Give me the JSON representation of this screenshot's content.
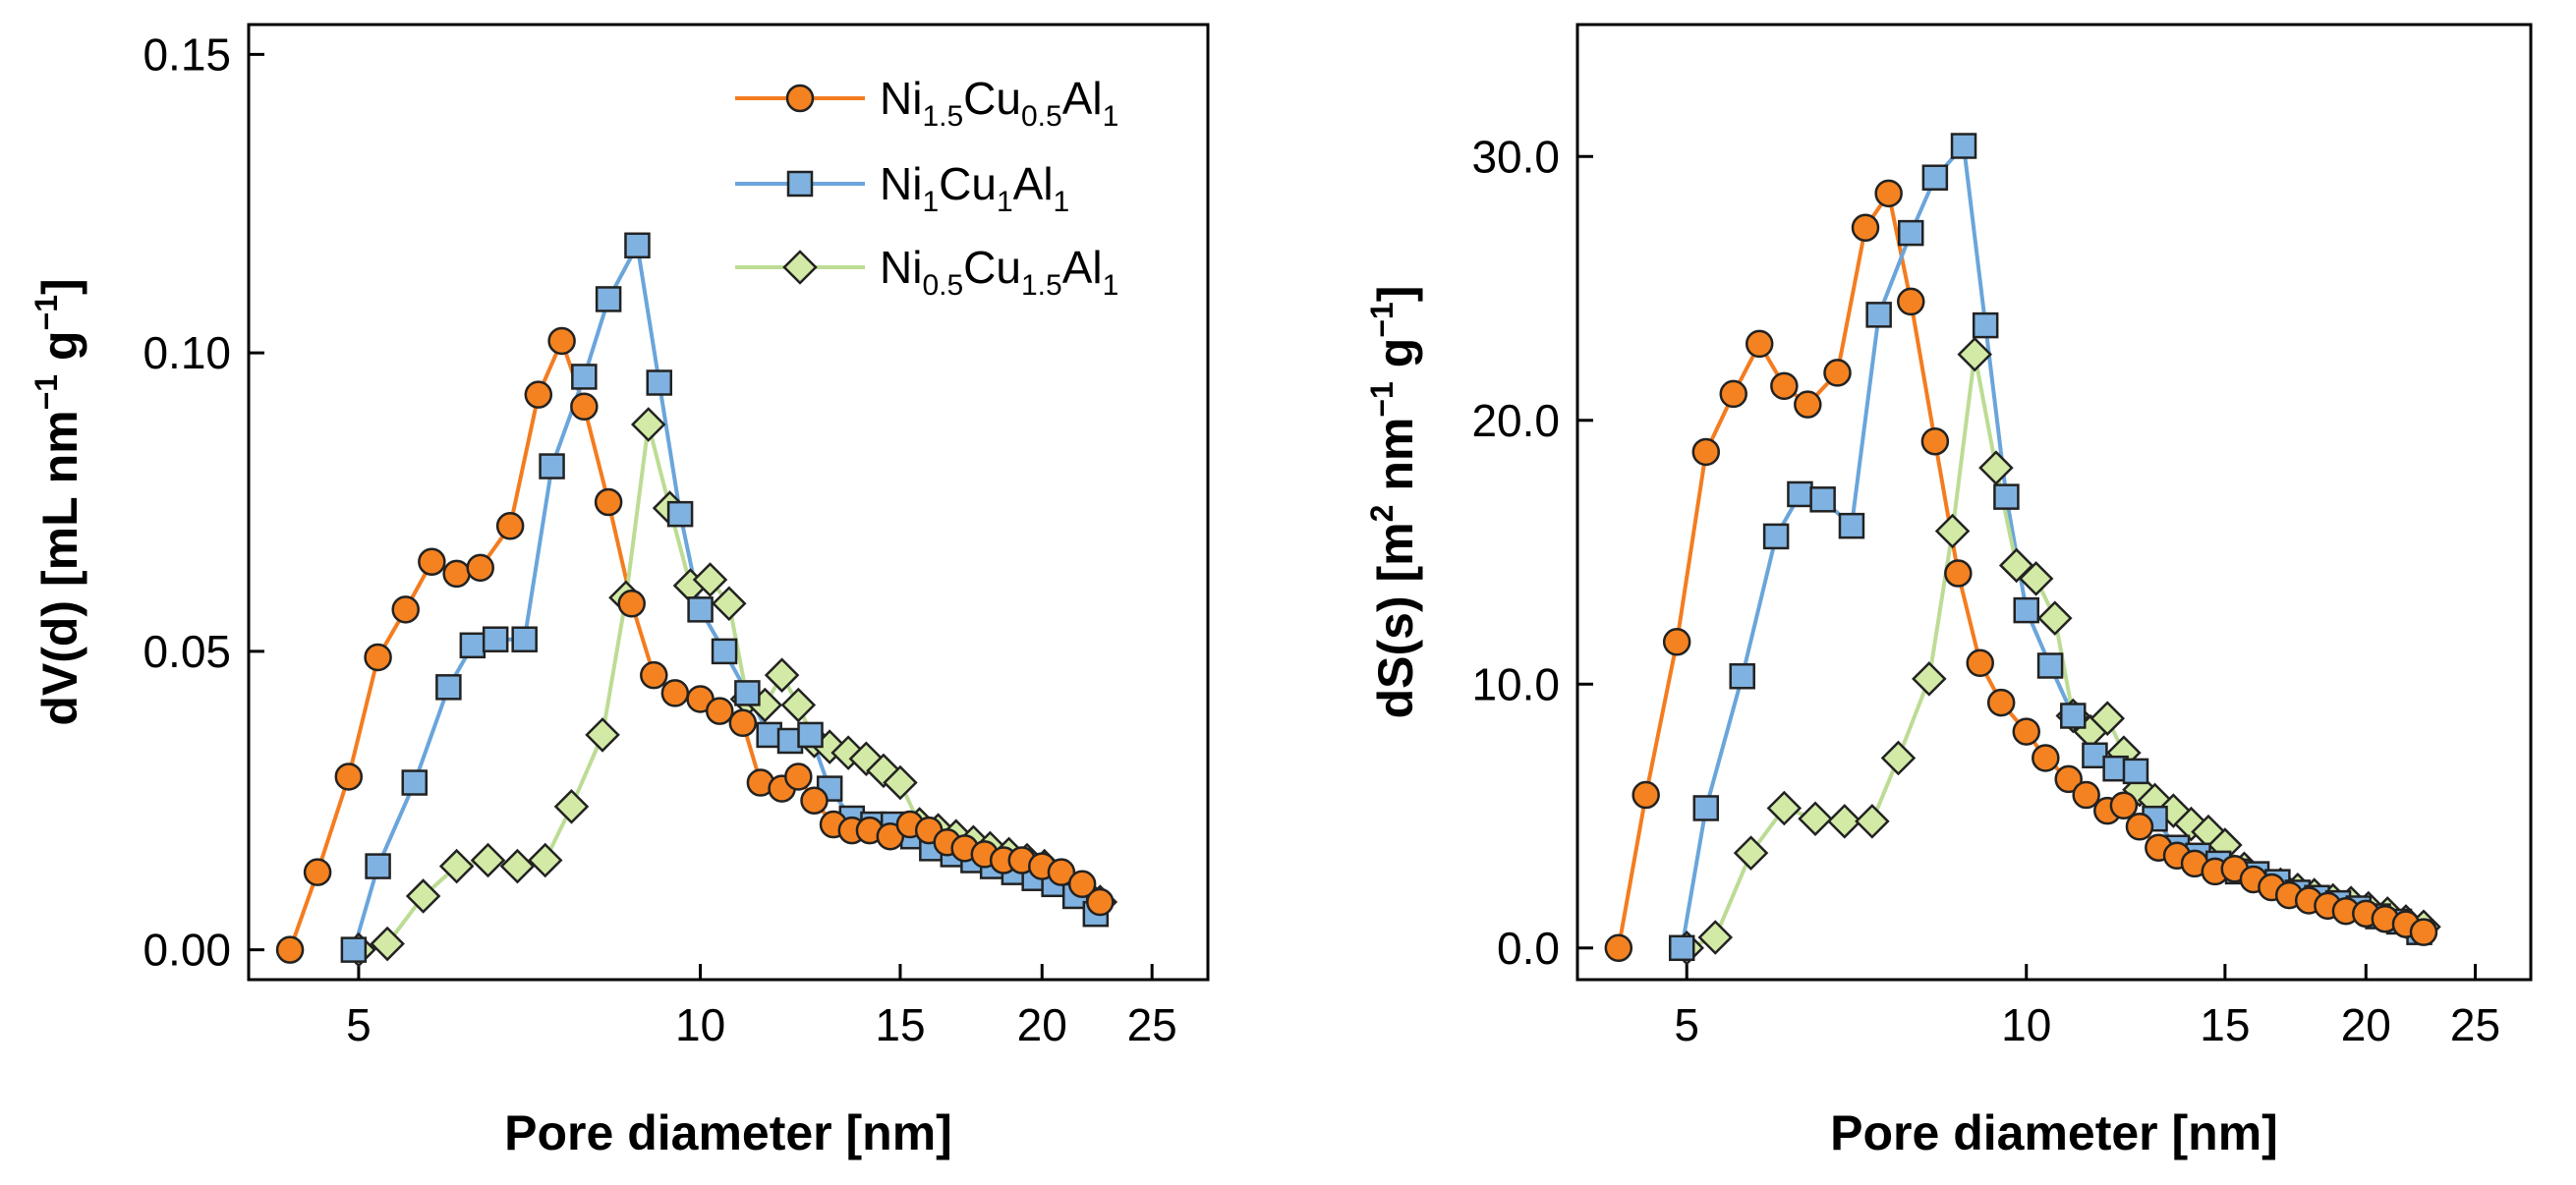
{
  "chart_data": [
    {
      "type": "line",
      "panel": "left",
      "ylabel": {
        "main": "dV(d) [mL nm",
        "sup1": "−1",
        "mid": " g",
        "sup2": "−1",
        "end": "]"
      },
      "xlabel": "Pore diameter [nm]",
      "xscale": "log",
      "xlim": [
        4.0,
        28.0
      ],
      "ylim": [
        -0.005,
        0.155
      ],
      "xticks": [
        5,
        10,
        15,
        20,
        25
      ],
      "xtick_labels": [
        "5",
        "10",
        "15",
        "20",
        "25"
      ],
      "yticks": [
        0.0,
        0.05,
        0.1,
        0.15
      ],
      "ytick_labels": [
        "0.00",
        "0.05",
        "0.10",
        "0.15"
      ],
      "series": [
        {
          "name": "Ni1.5Cu0.5Al1",
          "color": "#f58220",
          "fill": "#f58220",
          "line": "#f47c1f",
          "marker": "circle",
          "points": [
            [
              4.35,
              0.0
            ],
            [
              4.6,
              0.013
            ],
            [
              4.9,
              0.029
            ],
            [
              5.2,
              0.049
            ],
            [
              5.5,
              0.057
            ],
            [
              5.8,
              0.065
            ],
            [
              6.1,
              0.063
            ],
            [
              6.4,
              0.064
            ],
            [
              6.8,
              0.071
            ],
            [
              7.2,
              0.093
            ],
            [
              7.55,
              0.102
            ],
            [
              7.9,
              0.091
            ],
            [
              8.3,
              0.075
            ],
            [
              8.7,
              0.058
            ],
            [
              9.1,
              0.046
            ],
            [
              9.5,
              0.043
            ],
            [
              10.0,
              0.042
            ],
            [
              10.4,
              0.04
            ],
            [
              10.9,
              0.038
            ],
            [
              11.3,
              0.028
            ],
            [
              11.8,
              0.027
            ],
            [
              12.2,
              0.029
            ],
            [
              12.6,
              0.025
            ],
            [
              13.1,
              0.021
            ],
            [
              13.6,
              0.02
            ],
            [
              14.1,
              0.02
            ],
            [
              14.7,
              0.019
            ],
            [
              15.3,
              0.021
            ],
            [
              15.9,
              0.02
            ],
            [
              16.5,
              0.018
            ],
            [
              17.1,
              0.017
            ],
            [
              17.8,
              0.016
            ],
            [
              18.5,
              0.015
            ],
            [
              19.2,
              0.015
            ],
            [
              20.0,
              0.014
            ],
            [
              20.8,
              0.013
            ],
            [
              21.7,
              0.011
            ],
            [
              22.5,
              0.008
            ]
          ]
        },
        {
          "name": "Ni1Cu1Al1",
          "color": "#5b9bd5",
          "fill": "#7fb2e0",
          "line": "#6aa5db",
          "marker": "square",
          "points": [
            [
              4.95,
              0.0
            ],
            [
              5.2,
              0.014
            ],
            [
              5.6,
              0.028
            ],
            [
              6.0,
              0.044
            ],
            [
              6.3,
              0.051
            ],
            [
              6.6,
              0.052
            ],
            [
              7.0,
              0.052
            ],
            [
              7.4,
              0.081
            ],
            [
              7.9,
              0.096
            ],
            [
              8.3,
              0.109
            ],
            [
              8.8,
              0.118
            ],
            [
              9.2,
              0.095
            ],
            [
              9.6,
              0.073
            ],
            [
              10.0,
              0.057
            ],
            [
              10.5,
              0.05
            ],
            [
              11.0,
              0.043
            ],
            [
              11.5,
              0.036
            ],
            [
              12.0,
              0.035
            ],
            [
              12.5,
              0.036
            ],
            [
              13.0,
              0.027
            ],
            [
              13.6,
              0.022
            ],
            [
              14.2,
              0.021
            ],
            [
              14.8,
              0.021
            ],
            [
              15.4,
              0.019
            ],
            [
              16.0,
              0.017
            ],
            [
              16.7,
              0.016
            ],
            [
              17.4,
              0.015
            ],
            [
              18.1,
              0.014
            ],
            [
              18.9,
              0.013
            ],
            [
              19.7,
              0.012
            ],
            [
              20.5,
              0.011
            ],
            [
              21.4,
              0.009
            ],
            [
              22.3,
              0.006
            ]
          ]
        },
        {
          "name": "Ni0.5Cu1.5Al1",
          "color": "#b9dc8a",
          "fill": "#d2eaa5",
          "line": "#bcdc94",
          "marker": "diamond",
          "points": [
            [
              5.0,
              0.0
            ],
            [
              5.3,
              0.001
            ],
            [
              5.7,
              0.009
            ],
            [
              6.1,
              0.014
            ],
            [
              6.5,
              0.015
            ],
            [
              6.9,
              0.014
            ],
            [
              7.3,
              0.015
            ],
            [
              7.7,
              0.024
            ],
            [
              8.2,
              0.036
            ],
            [
              8.6,
              0.059
            ],
            [
              9.0,
              0.088
            ],
            [
              9.4,
              0.074
            ],
            [
              9.8,
              0.061
            ],
            [
              10.2,
              0.062
            ],
            [
              10.6,
              0.058
            ],
            [
              11.0,
              0.042
            ],
            [
              11.4,
              0.041
            ],
            [
              11.8,
              0.046
            ],
            [
              12.2,
              0.041
            ],
            [
              12.6,
              0.035
            ],
            [
              13.0,
              0.034
            ],
            [
              13.5,
              0.033
            ],
            [
              14.0,
              0.032
            ],
            [
              14.5,
              0.03
            ],
            [
              15.0,
              0.028
            ],
            [
              15.6,
              0.021
            ],
            [
              16.2,
              0.02
            ],
            [
              16.8,
              0.019
            ],
            [
              17.4,
              0.018
            ],
            [
              18.0,
              0.017
            ],
            [
              18.7,
              0.016
            ],
            [
              19.4,
              0.015
            ],
            [
              20.1,
              0.014
            ],
            [
              20.9,
              0.012
            ],
            [
              21.7,
              0.01
            ],
            [
              22.5,
              0.008
            ]
          ]
        }
      ],
      "legend": {
        "placement": "top-right",
        "entries": [
          {
            "base1": "Ni",
            "sub1": "1.5",
            "base2": "Cu",
            "sub2": "0.5",
            "base3": "Al",
            "sub3": "1"
          },
          {
            "base1": "Ni",
            "sub1": "1",
            "base2": "Cu",
            "sub2": "1",
            "base3": "Al",
            "sub3": "1"
          },
          {
            "base1": "Ni",
            "sub1": "0.5",
            "base2": "Cu",
            "sub2": "1.5",
            "base3": "Al",
            "sub3": "1"
          }
        ]
      }
    },
    {
      "type": "line",
      "panel": "right",
      "ylabel": {
        "main": "dS(s) [m",
        "sup0": "2",
        "mid0": " nm",
        "sup1": "−1",
        "mid": " g",
        "sup2": "−1",
        "end": "]"
      },
      "xlabel": "Pore diameter [nm]",
      "xscale": "log",
      "xlim": [
        4.0,
        28.0
      ],
      "ylim": [
        -1.2,
        35.0
      ],
      "xticks": [
        5,
        10,
        15,
        20,
        25
      ],
      "xtick_labels": [
        "5",
        "10",
        "15",
        "20",
        "25"
      ],
      "yticks": [
        0,
        10,
        20,
        30
      ],
      "ytick_labels": [
        "0.0",
        "10.0",
        "20.0",
        "30.0"
      ],
      "series": [
        {
          "name": "Ni1.5Cu0.5Al1",
          "color": "#f58220",
          "fill": "#f58220",
          "line": "#f47c1f",
          "marker": "circle",
          "points": [
            [
              4.35,
              0.0
            ],
            [
              4.6,
              5.8
            ],
            [
              4.9,
              11.6
            ],
            [
              5.2,
              18.8
            ],
            [
              5.5,
              21.0
            ],
            [
              5.8,
              22.9
            ],
            [
              6.1,
              21.3
            ],
            [
              6.4,
              20.6
            ],
            [
              6.8,
              21.8
            ],
            [
              7.2,
              27.3
            ],
            [
              7.55,
              28.6
            ],
            [
              7.9,
              24.5
            ],
            [
              8.3,
              19.2
            ],
            [
              8.7,
              14.2
            ],
            [
              9.1,
              10.8
            ],
            [
              9.5,
              9.3
            ],
            [
              10.0,
              8.2
            ],
            [
              10.4,
              7.2
            ],
            [
              10.9,
              6.4
            ],
            [
              11.3,
              5.8
            ],
            [
              11.8,
              5.2
            ],
            [
              12.2,
              5.4
            ],
            [
              12.6,
              4.6
            ],
            [
              13.1,
              3.8
            ],
            [
              13.6,
              3.5
            ],
            [
              14.1,
              3.2
            ],
            [
              14.7,
              2.9
            ],
            [
              15.3,
              3.0
            ],
            [
              15.9,
              2.6
            ],
            [
              16.5,
              2.3
            ],
            [
              17.1,
              2.0
            ],
            [
              17.8,
              1.8
            ],
            [
              18.5,
              1.6
            ],
            [
              19.2,
              1.4
            ],
            [
              20.0,
              1.3
            ],
            [
              20.8,
              1.1
            ],
            [
              21.7,
              0.9
            ],
            [
              22.5,
              0.6
            ]
          ]
        },
        {
          "name": "Ni1Cu1Al1",
          "color": "#5b9bd5",
          "fill": "#7fb2e0",
          "line": "#6aa5db",
          "marker": "square",
          "points": [
            [
              4.95,
              0.0
            ],
            [
              5.2,
              5.3
            ],
            [
              5.6,
              10.3
            ],
            [
              6.0,
              15.6
            ],
            [
              6.3,
              17.2
            ],
            [
              6.6,
              17.0
            ],
            [
              7.0,
              16.0
            ],
            [
              7.4,
              24.0
            ],
            [
              7.9,
              27.1
            ],
            [
              8.3,
              29.2
            ],
            [
              8.8,
              30.4
            ],
            [
              9.2,
              23.6
            ],
            [
              9.6,
              17.1
            ],
            [
              10.0,
              12.8
            ],
            [
              10.5,
              10.7
            ],
            [
              11.0,
              8.8
            ],
            [
              11.5,
              7.3
            ],
            [
              12.0,
              6.8
            ],
            [
              12.5,
              6.7
            ],
            [
              13.0,
              4.9
            ],
            [
              13.6,
              3.8
            ],
            [
              14.2,
              3.5
            ],
            [
              14.8,
              3.2
            ],
            [
              15.4,
              2.9
            ],
            [
              16.0,
              2.8
            ],
            [
              16.7,
              2.5
            ],
            [
              17.4,
              2.1
            ],
            [
              18.1,
              1.9
            ],
            [
              18.9,
              1.7
            ],
            [
              19.7,
              1.5
            ],
            [
              20.5,
              1.2
            ],
            [
              21.4,
              1.0
            ],
            [
              22.3,
              0.6
            ]
          ]
        },
        {
          "name": "Ni0.5Cu1.5Al1",
          "color": "#b9dc8a",
          "fill": "#d2eaa5",
          "line": "#bcdc94",
          "marker": "diamond",
          "points": [
            [
              5.0,
              0.0
            ],
            [
              5.3,
              0.4
            ],
            [
              5.7,
              3.6
            ],
            [
              6.1,
              5.3
            ],
            [
              6.5,
              4.9
            ],
            [
              6.9,
              4.8
            ],
            [
              7.3,
              4.8
            ],
            [
              7.7,
              7.2
            ],
            [
              8.2,
              10.2
            ],
            [
              8.6,
              15.8
            ],
            [
              9.0,
              22.5
            ],
            [
              9.4,
              18.2
            ],
            [
              9.8,
              14.5
            ],
            [
              10.2,
              14.0
            ],
            [
              10.6,
              12.5
            ],
            [
              11.0,
              8.8
            ],
            [
              11.4,
              8.2
            ],
            [
              11.8,
              8.7
            ],
            [
              12.2,
              7.4
            ],
            [
              12.6,
              6.0
            ],
            [
              13.0,
              5.6
            ],
            [
              13.5,
              5.2
            ],
            [
              14.0,
              4.7
            ],
            [
              14.5,
              4.4
            ],
            [
              15.0,
              3.9
            ],
            [
              15.6,
              3.0
            ],
            [
              16.2,
              2.6
            ],
            [
              16.8,
              2.4
            ],
            [
              17.4,
              2.2
            ],
            [
              18.0,
              2.0
            ],
            [
              18.7,
              1.8
            ],
            [
              19.4,
              1.7
            ],
            [
              20.1,
              1.5
            ],
            [
              20.9,
              1.3
            ],
            [
              21.7,
              1.0
            ],
            [
              22.5,
              0.8
            ]
          ]
        }
      ]
    }
  ]
}
